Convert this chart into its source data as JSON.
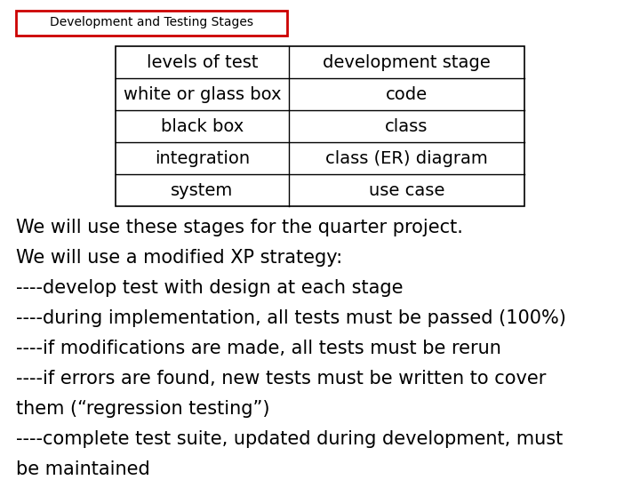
{
  "title": "Development and Testing Stages",
  "title_box_color": "#cc0000",
  "bg_color": "#ffffff",
  "table_left_col": [
    "levels of test",
    "white or glass box",
    "black box",
    "integration",
    "system"
  ],
  "table_right_col": [
    "development stage",
    "code",
    "class",
    "class (ER) diagram",
    "use case"
  ],
  "body_lines": [
    "We will use these stages for the quarter project.",
    "We will use a modified XP strategy:",
    "----develop test with design at each stage",
    "----during implementation, all tests must be passed (100%)",
    "----if modifications are made, all tests must be rerun",
    "----if errors are found, new tests must be written to cover",
    "them (“regression testing”)",
    "----complete test suite, updated during development, must",
    "be maintained"
  ],
  "font_size_title": 9,
  "font_size_table_header": 14,
  "font_size_table_data": 14,
  "font_size_body": 15
}
